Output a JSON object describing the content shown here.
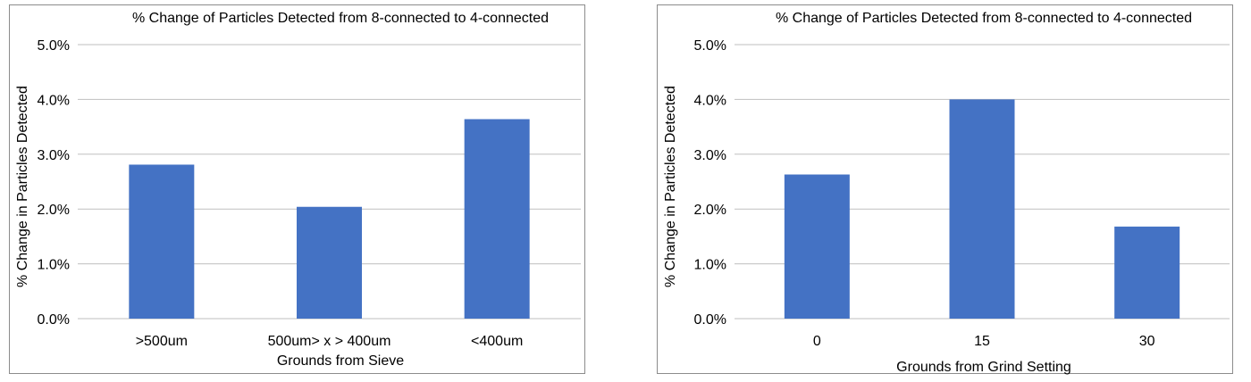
{
  "chart_data": [
    {
      "type": "bar",
      "title": "% Change of Particles Detected from 8-connected to 4-connected",
      "xlabel": "Grounds from Sieve",
      "ylabel": "% Change in Particles Detected",
      "categories": [
        ">500um",
        "500um> x > 400um",
        "<400um"
      ],
      "values": [
        2.81,
        2.04,
        3.64
      ],
      "ylim": [
        0,
        5
      ],
      "yticks": [
        "0.0%",
        "1.0%",
        "2.0%",
        "3.0%",
        "4.0%",
        "5.0%"
      ],
      "grid": true,
      "bar_color": "#4472C4"
    },
    {
      "type": "bar",
      "title": "% Change of Particles Detected from 8-connected to 4-connected",
      "xlabel": "Grounds from Grind Setting",
      "ylabel": "% Change in Particles Detected",
      "categories": [
        "0",
        "15",
        "30"
      ],
      "values": [
        2.63,
        4.0,
        1.68
      ],
      "ylim": [
        0,
        5
      ],
      "yticks": [
        "0.0%",
        "1.0%",
        "2.0%",
        "3.0%",
        "4.0%",
        "5.0%"
      ],
      "grid": true,
      "bar_color": "#4472C4"
    }
  ]
}
